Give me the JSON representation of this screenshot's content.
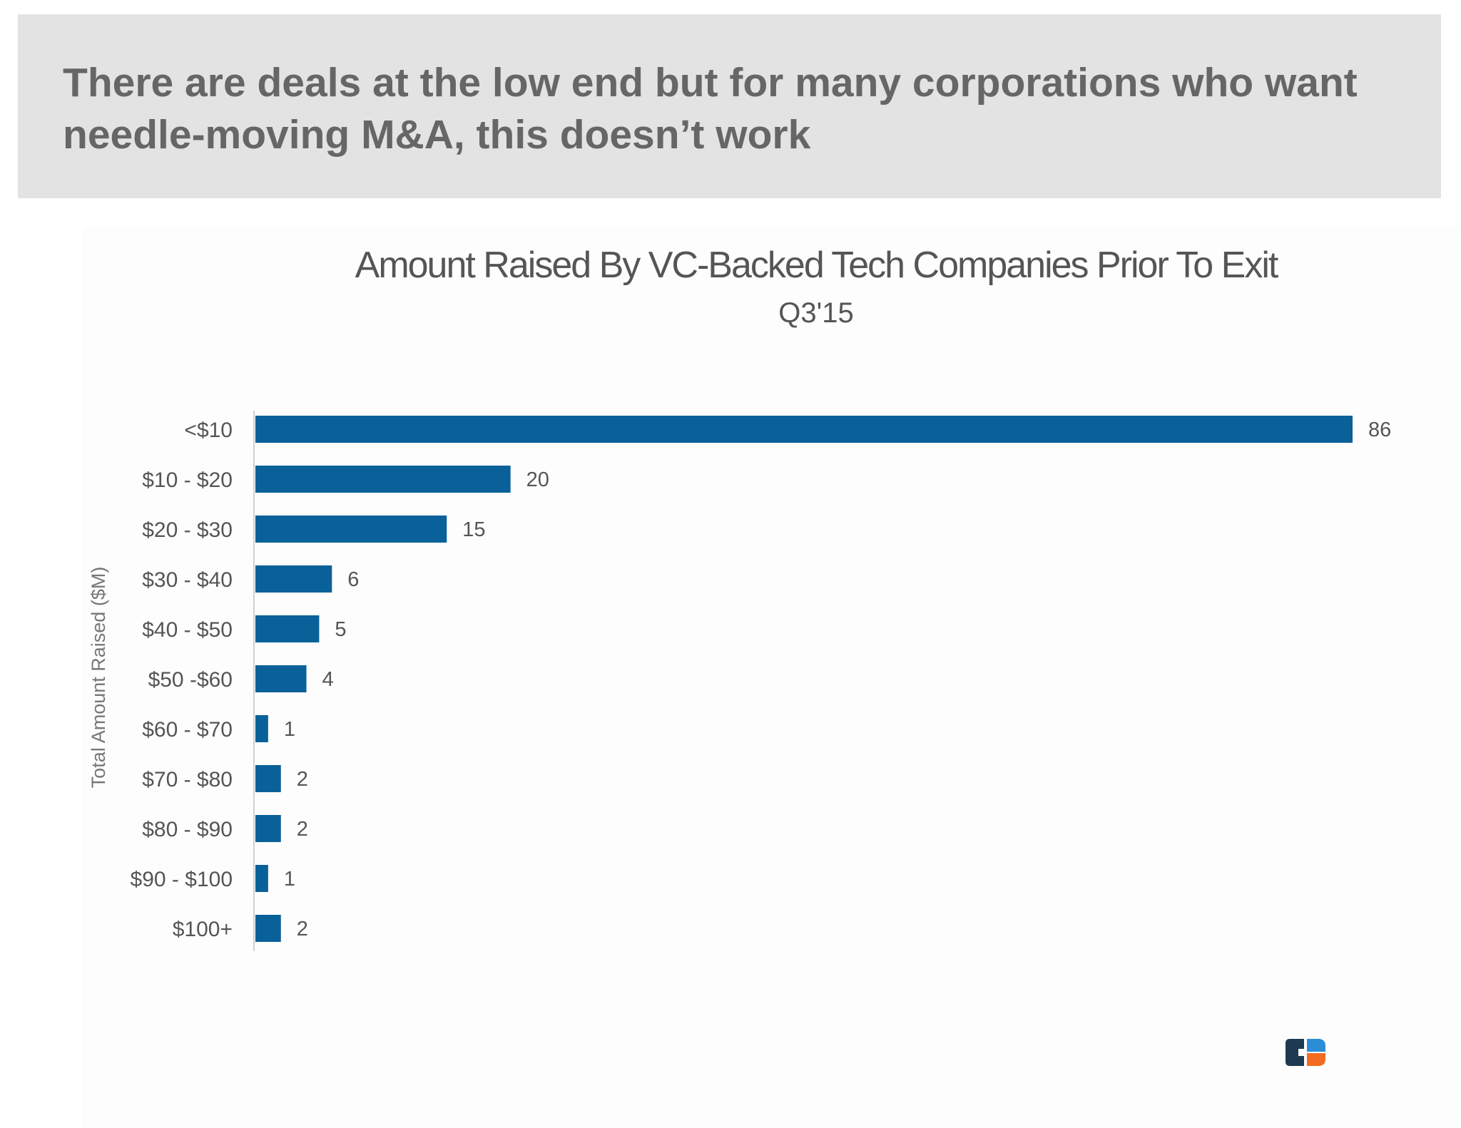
{
  "header": {
    "title": "There are deals at the low end but for many corporations who want needle-moving M&A, this doesn’t work"
  },
  "colors": {
    "header_bg": "#e3e3e3",
    "title_text": "#666666",
    "bar": "#0a6199",
    "chart_text": "#555555",
    "logo_dark": "#1e3a52",
    "logo_orange": "#f26b21",
    "logo_blue": "#2a8dd6"
  },
  "logo": {
    "icon": "cb-insights-logo-icon"
  },
  "chart_data": {
    "type": "bar",
    "orientation": "horizontal",
    "title": "Amount Raised By VC-Backed Tech Companies Prior To Exit",
    "subtitle": "Q3'15",
    "ylabel": "Total Amount Raised ($M)",
    "xlabel": "",
    "categories": [
      "<$10",
      "$10 - $20",
      "$20 - $30",
      "$30 - $40",
      "$40 - $50",
      "$50 -$60",
      "$60 - $70",
      "$70 - $80",
      "$80 - $90",
      "$90 - $100",
      "$100+"
    ],
    "values": [
      86,
      20,
      15,
      6,
      5,
      4,
      1,
      2,
      2,
      1,
      2
    ],
    "data_labels": [
      "86",
      "20",
      "15",
      "6",
      "5",
      "4",
      "1",
      "2",
      "2",
      "1",
      "2"
    ],
    "xlim": [
      0,
      86
    ],
    "grid": false,
    "legend": "none"
  }
}
